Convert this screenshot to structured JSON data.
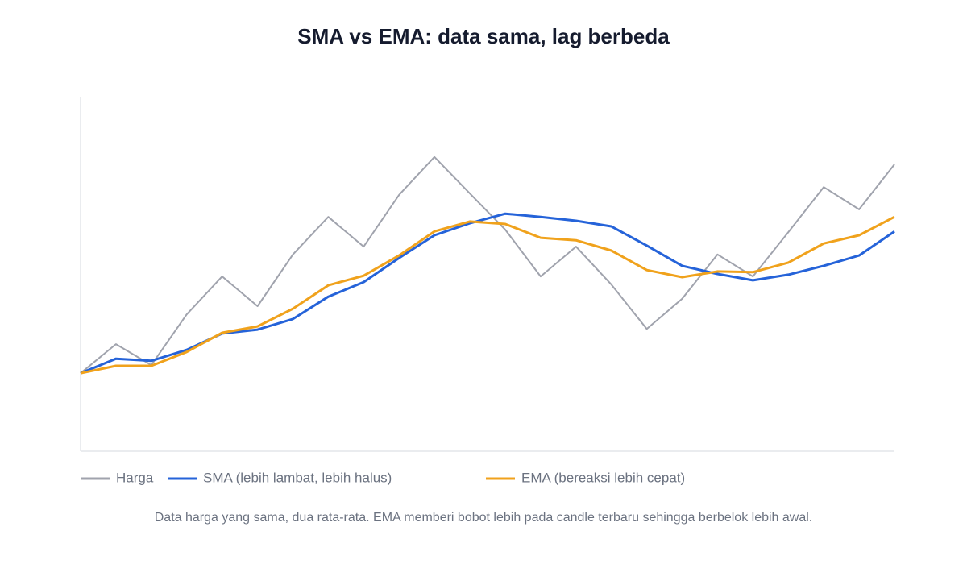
{
  "chart_data": {
    "type": "line",
    "title": "SMA vs EMA: data sama, lag berbeda",
    "note": "Data harga yang sama, dua rata-rata. EMA memberi bobot lebih pada candle terbaru sehingga berbelok lebih awal.",
    "categories": [
      null,
      null,
      null,
      null,
      null,
      null,
      null,
      null,
      null,
      null,
      null,
      null,
      null,
      null,
      null,
      null,
      null,
      null,
      null,
      null,
      null,
      null,
      null,
      null
    ],
    "ylim": [
      0,
      100
    ],
    "grid": false,
    "series": [
      {
        "name": "Harga",
        "color": "#a0a3ad",
        "values": [
          22.0,
          30.2,
          24.3,
          38.6,
          49.3,
          40.9,
          55.5,
          66.1,
          57.7,
          72.3,
          83.0,
          72.7,
          62.5,
          49.3,
          57.7,
          47.0,
          34.5,
          43.0,
          55.5,
          49.3,
          61.8,
          74.5,
          68.2,
          80.9
        ]
      },
      {
        "name": "SMA (lebih lambat, lebih halus)",
        "color": "#2563d9",
        "values": [
          22.0,
          26.1,
          25.5,
          28.6,
          33.2,
          34.3,
          37.3,
          43.6,
          47.7,
          54.5,
          60.9,
          64.3,
          67.0,
          66.1,
          65.0,
          63.4,
          58.0,
          52.3,
          50.0,
          48.2,
          49.8,
          52.3,
          55.2,
          62.0
        ]
      },
      {
        "name": "EMA (bereaksi lebih cepat)",
        "color": "#f0a21c",
        "values": [
          22.0,
          24.1,
          24.1,
          28.0,
          33.4,
          35.2,
          40.2,
          46.8,
          49.5,
          55.2,
          62.0,
          64.8,
          64.1,
          60.2,
          59.5,
          56.6,
          51.1,
          49.1,
          50.7,
          50.5,
          53.2,
          58.6,
          60.9,
          66.1
        ]
      }
    ]
  }
}
